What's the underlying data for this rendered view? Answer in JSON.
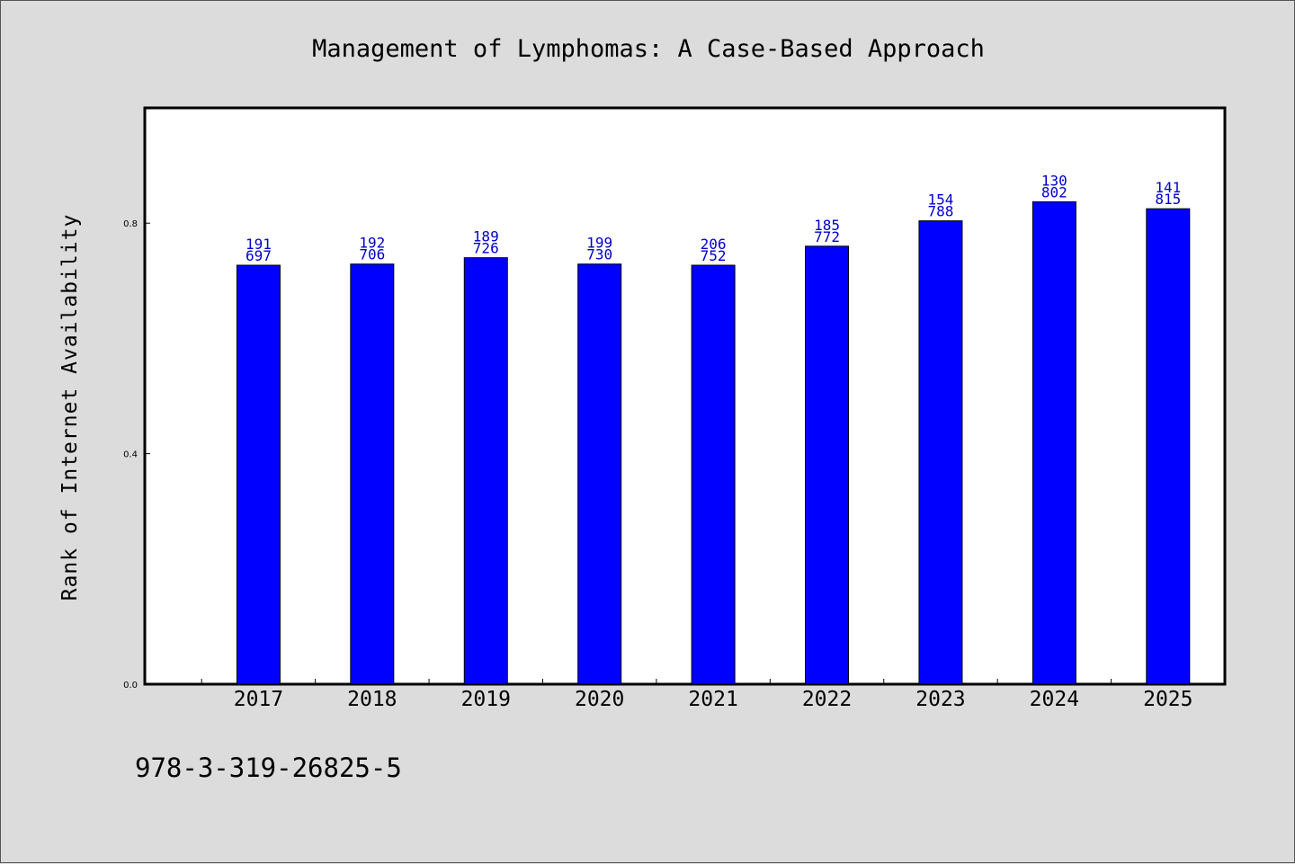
{
  "chart_data": {
    "type": "bar",
    "title": "Management of Lymphomas: A Case-Based Approach",
    "ylabel": "Rank of Internet Availability",
    "xlabel": "",
    "ylim": [
      0,
      1.0
    ],
    "yticks": [
      0.0,
      0.4,
      0.8
    ],
    "ytick_labels": [
      "0.0",
      "0.4",
      "0.8"
    ],
    "x_range": [
      2016,
      2025.5
    ],
    "categories": [
      "2017",
      "2018",
      "2019",
      "2020",
      "2021",
      "2022",
      "2023",
      "2024",
      "2025"
    ],
    "values": [
      0.727,
      0.729,
      0.74,
      0.729,
      0.727,
      0.76,
      0.804,
      0.837,
      0.825
    ],
    "data_labels": [
      [
        "191",
        "697"
      ],
      [
        "192",
        "706"
      ],
      [
        "189",
        "726"
      ],
      [
        "199",
        "730"
      ],
      [
        "206",
        "752"
      ],
      [
        "185",
        "772"
      ],
      [
        "154",
        "788"
      ],
      [
        "130",
        "802"
      ],
      [
        "141",
        "815"
      ]
    ],
    "bar_color": "#0000ff",
    "label_color": "#0000cc",
    "grid": false,
    "legend": "none"
  },
  "footnote": "978-3-319-26825-5",
  "colors": {
    "background": "#dcdcdc",
    "plot_area": "#ffffff",
    "bar": "#0000ff"
  }
}
